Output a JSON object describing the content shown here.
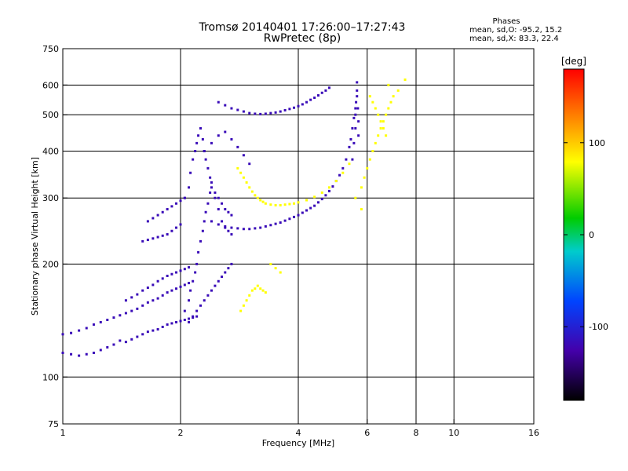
{
  "header": {
    "title_line1": "Tromsø 20140401 17:26:00–17:27:43",
    "title_line2": "RwPretec (8p)"
  },
  "phases_box": {
    "title": "Phases",
    "line_o": "mean, sd,O: -95.2, 15.2",
    "line_x": "mean, sd,X:  83.3, 22.4"
  },
  "colorbar": {
    "unit": "[deg]",
    "tick_labels": [
      "100",
      "0",
      "-100"
    ],
    "tick_values": [
      100,
      0,
      -100
    ],
    "range": [
      -180,
      180
    ]
  },
  "chart_data": {
    "type": "scatter",
    "xlabel": "Frequency [MHz]",
    "ylabel": "Stationary phase Virtual Height [km]",
    "x_scale": "log",
    "y_scale": "log",
    "xlim": [
      1,
      16
    ],
    "ylim": [
      75,
      750
    ],
    "xticks": [
      1,
      2,
      4,
      6,
      8,
      10,
      16
    ],
    "xtick_labels": [
      "1",
      "2",
      "4",
      "6",
      "8",
      "10",
      "16"
    ],
    "x_gridlines": [
      2,
      4,
      6,
      8,
      10
    ],
    "yticks": [
      75,
      100,
      200,
      300,
      400,
      500,
      600,
      750
    ],
    "ytick_labels": [
      "75",
      "100",
      "200",
      "300",
      "400",
      "500",
      "600",
      "750"
    ],
    "y_gridlines": [
      100,
      200,
      300,
      400,
      500,
      600
    ],
    "grid": true,
    "series": [
      {
        "phase_deg": -110,
        "x": [
          1.0,
          1.05,
          1.1,
          1.15,
          1.2,
          1.25,
          1.3,
          1.35,
          1.4,
          1.45,
          1.5,
          1.55,
          1.6,
          1.65,
          1.7,
          1.75,
          1.8,
          1.85,
          1.9,
          1.95,
          2.0,
          2.05,
          2.1,
          2.15,
          2.2,
          1.0,
          1.05,
          1.1,
          1.15,
          1.2,
          1.25,
          1.3,
          1.35,
          1.4,
          1.45,
          1.5,
          1.55,
          1.6,
          1.65,
          1.7,
          1.75,
          1.8,
          1.85,
          1.9,
          1.95,
          2.0,
          2.05,
          2.1,
          1.45,
          1.5,
          1.55,
          1.6,
          1.65,
          1.7,
          1.75,
          1.8,
          1.85,
          1.9,
          1.95,
          2.0,
          2.05,
          2.1,
          2.05,
          2.1,
          2.12,
          2.15,
          2.18,
          2.2,
          2.22,
          2.25,
          2.28,
          2.3,
          2.32,
          2.35,
          2.38,
          2.4,
          2.45,
          2.5,
          2.55,
          2.6,
          2.65,
          2.7,
          2.05,
          2.1,
          2.12,
          2.15,
          2.18,
          2.2,
          2.22,
          2.25,
          2.28,
          2.3,
          2.32,
          2.35,
          2.38,
          2.4,
          2.45,
          2.5,
          2.55,
          2.6,
          2.65,
          2.7,
          2.1,
          2.15,
          2.2,
          2.25,
          2.3,
          2.35,
          2.4,
          2.45,
          2.5,
          2.55,
          2.6,
          2.65,
          2.7,
          1.6,
          1.65,
          1.7,
          1.75,
          1.8,
          1.85,
          1.9,
          1.95,
          2.0,
          1.65,
          1.7,
          1.75,
          1.8,
          1.85,
          1.9,
          1.95,
          2.0,
          2.05,
          2.4,
          2.5,
          2.6,
          2.7,
          2.8,
          2.9,
          3.0,
          3.1,
          3.2,
          3.3,
          3.4,
          3.5,
          3.6,
          3.7,
          3.8,
          3.9,
          4.0,
          4.1,
          4.2,
          4.3,
          4.4,
          4.5,
          4.6,
          4.7,
          4.8,
          4.9,
          5.0,
          5.1,
          5.2,
          5.3,
          5.4,
          5.45,
          5.5,
          5.55,
          5.6,
          5.65,
          5.5,
          5.55,
          5.6,
          5.6,
          5.62,
          5.65,
          5.65,
          5.68,
          5.7,
          5.7,
          2.5,
          2.6,
          2.7,
          2.8,
          2.9,
          3.0,
          3.1,
          3.2,
          3.3,
          3.4,
          3.5,
          3.6,
          3.7,
          3.8,
          3.9,
          4.0,
          4.1,
          4.2,
          4.3,
          4.4,
          4.5,
          4.6,
          4.7,
          4.8,
          2.3,
          2.4,
          2.5,
          2.6,
          2.7,
          2.8,
          2.9,
          3.0
        ],
        "y": [
          116,
          115,
          114,
          115,
          116,
          118,
          120,
          122,
          125,
          124,
          126,
          128,
          130,
          132,
          133,
          134,
          136,
          138,
          139,
          140,
          141,
          142,
          143,
          144,
          145,
          130,
          131,
          133,
          135,
          138,
          140,
          142,
          144,
          146,
          148,
          150,
          152,
          155,
          158,
          160,
          162,
          165,
          168,
          170,
          172,
          174,
          176,
          178,
          160,
          163,
          166,
          170,
          173,
          176,
          180,
          183,
          186,
          188,
          190,
          192,
          194,
          196,
          300,
          320,
          350,
          380,
          400,
          420,
          440,
          460,
          430,
          400,
          380,
          360,
          340,
          320,
          310,
          300,
          290,
          280,
          275,
          270,
          150,
          160,
          170,
          180,
          190,
          200,
          215,
          230,
          245,
          260,
          275,
          290,
          310,
          330,
          300,
          280,
          260,
          250,
          245,
          240,
          140,
          145,
          150,
          155,
          160,
          165,
          170,
          175,
          180,
          185,
          190,
          195,
          200,
          230,
          232,
          234,
          236,
          238,
          240,
          245,
          250,
          255,
          260,
          265,
          270,
          275,
          280,
          285,
          290,
          295,
          300,
          260,
          255,
          252,
          250,
          249,
          248,
          248,
          249,
          250,
          252,
          254,
          256,
          258,
          261,
          264,
          267,
          270,
          274,
          278,
          282,
          286,
          292,
          298,
          305,
          313,
          322,
          333,
          345,
          360,
          380,
          410,
          430,
          460,
          490,
          520,
          560,
          380,
          420,
          460,
          500,
          540,
          580,
          610,
          520,
          480,
          440,
          540,
          530,
          520,
          515,
          510,
          505,
          503,
          502,
          503,
          505,
          507,
          510,
          514,
          518,
          522,
          527,
          533,
          540,
          548,
          555,
          563,
          572,
          580,
          590,
          400,
          420,
          440,
          450,
          430,
          410,
          390,
          370
        ]
      },
      {
        "phase_deg": 100,
        "x": [
          2.8,
          2.85,
          2.9,
          2.95,
          3.0,
          3.05,
          3.1,
          3.15,
          3.2,
          3.25,
          3.3,
          3.4,
          3.5,
          3.6,
          3.7,
          3.8,
          3.9,
          4.0,
          4.2,
          4.4,
          4.6,
          4.8,
          5.0,
          5.2,
          5.4,
          5.6,
          5.8,
          2.85,
          2.9,
          2.95,
          3.0,
          3.05,
          3.1,
          3.15,
          3.2,
          3.25,
          3.3,
          5.8,
          5.9,
          6.0,
          6.1,
          6.2,
          6.3,
          6.4,
          6.5,
          6.6,
          6.7,
          6.8,
          6.9,
          7.0,
          6.1,
          6.2,
          6.3,
          6.4,
          6.5,
          6.6,
          6.7,
          3.4,
          3.5,
          3.6,
          6.8,
          7.2,
          7.5
        ],
        "y": [
          360,
          350,
          340,
          330,
          320,
          312,
          305,
          300,
          296,
          293,
          290,
          288,
          287,
          287,
          288,
          289,
          290,
          292,
          296,
          302,
          310,
          320,
          333,
          350,
          370,
          300,
          280,
          150,
          155,
          160,
          165,
          170,
          172,
          175,
          172,
          170,
          168,
          320,
          340,
          360,
          380,
          400,
          420,
          440,
          460,
          480,
          500,
          520,
          540,
          560,
          560,
          540,
          520,
          500,
          480,
          460,
          440,
          200,
          195,
          190,
          600,
          580,
          620
        ]
      }
    ]
  }
}
